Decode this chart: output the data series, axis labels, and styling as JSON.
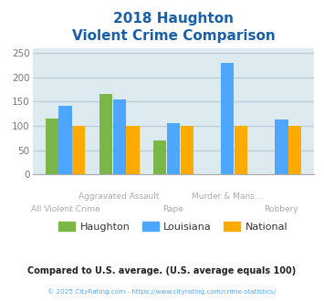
{
  "title_line1": "2018 Haughton",
  "title_line2": "Violent Crime Comparison",
  "title_color": "#1a5fa8",
  "categories": [
    "All Violent Crime",
    "Aggravated Assault",
    "Rape",
    "Murder & Mans...",
    "Robbery"
  ],
  "haughton": [
    115,
    165,
    70,
    0,
    0
  ],
  "louisiana": [
    142,
    155,
    105,
    230,
    113
  ],
  "national": [
    100,
    100,
    100,
    100,
    100
  ],
  "haughton_color": "#7ab648",
  "louisiana_color": "#4da6ff",
  "national_color": "#ffaa00",
  "ylim": [
    0,
    260
  ],
  "yticks": [
    0,
    50,
    100,
    150,
    200,
    250
  ],
  "bg_color": "#ddeaf0",
  "footer_text": "Compared to U.S. average. (U.S. average equals 100)",
  "footer_color": "#222222",
  "copyright_text": "© 2025 CityRating.com - https://www.cityrating.com/crime-statistics/",
  "copyright_color": "#4da6ff",
  "legend_labels": [
    "Haughton",
    "Louisiana",
    "National"
  ],
  "xlabel_color": "#aaaaaa",
  "grid_color": "#b8cdd8",
  "xlabels_upper": [
    "",
    "Aggravated Assault",
    "",
    "Murder & Mans...",
    ""
  ],
  "xlabels_lower": [
    "All Violent Crime",
    "",
    "Rape",
    "",
    "Robbery"
  ]
}
